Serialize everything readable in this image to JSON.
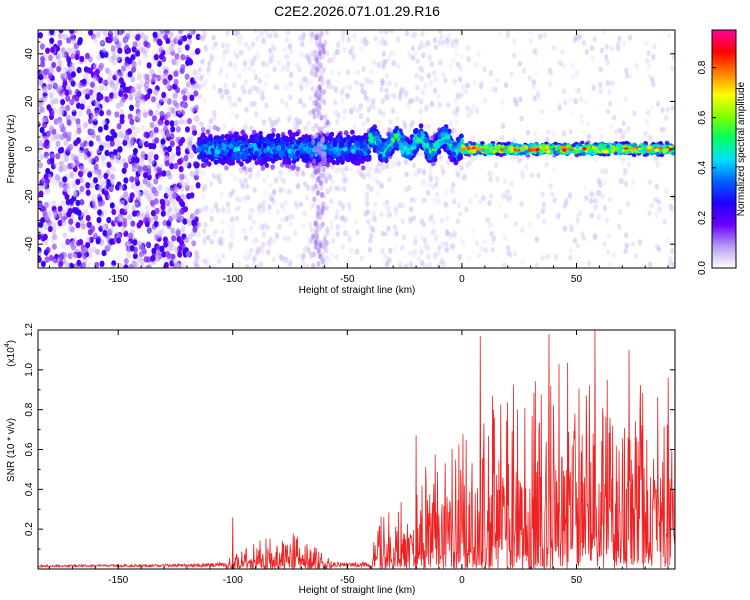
{
  "chart_data": [
    {
      "type": "heatmap",
      "title": "C2E2.2026.071.01.29.R16",
      "xlabel": "Height of straight line (km)",
      "ylabel": "Frequency (Hz)",
      "xlim": [
        -185,
        93
      ],
      "ylim": [
        -50,
        50
      ],
      "x_ticks": [
        -150,
        -100,
        -50,
        0,
        50
      ],
      "y_ticks": [
        -40,
        -20,
        0,
        20,
        40
      ],
      "colorbar": {
        "label": "Normalized spectral amplitude",
        "range": [
          0.0,
          0.95
        ],
        "ticks": [
          "0.0",
          "0.2",
          "0.4",
          "0.6",
          "0.8"
        ],
        "colormap": [
          "#ffffff",
          "#b89cf0",
          "#6a00ff",
          "#2000ff",
          "#0060ff",
          "#00e0ff",
          "#00ff60",
          "#80ff00",
          "#ffff00",
          "#ff8000",
          "#ff0000",
          "#ff00a0"
        ]
      },
      "regions": [
        {
          "x": [
            -185,
            -115
          ],
          "description": "broadband noise, amplitude 0.05-0.25, spanning full frequency range"
        },
        {
          "x": [
            -115,
            -40
          ],
          "center_hz": 0,
          "spread_hz": 9,
          "amplitude": [
            0.2,
            0.4
          ]
        },
        {
          "x": [
            -40,
            0
          ],
          "center_hz": 2,
          "spread_hz": 6,
          "amplitude": [
            0.3,
            0.55
          ]
        },
        {
          "x": [
            0,
            93
          ],
          "center_hz": 0,
          "spread_hz": 3,
          "amplitude": [
            0.4,
            0.9
          ]
        }
      ]
    },
    {
      "type": "line",
      "xlabel": "Height of straight line (km)",
      "ylabel": "SNR (10 * v/v)",
      "scale_label": "(x10",
      "scale_exp": "4",
      "scale_close": ")",
      "xlim": [
        -185,
        93
      ],
      "ylim": [
        0,
        1.2
      ],
      "x_ticks": [
        -150,
        -100,
        -50,
        0,
        50
      ],
      "y_ticks": [
        "0.2",
        "0.4",
        "0.6",
        "0.8",
        "1.0",
        "1.2"
      ],
      "line_color": "#ee2222",
      "envelope": [
        {
          "x": -185,
          "y": 0.02
        },
        {
          "x": -120,
          "y": 0.03
        },
        {
          "x": -105,
          "y": 0.05
        },
        {
          "x": -95,
          "y": 0.1
        },
        {
          "x": -85,
          "y": 0.17
        },
        {
          "x": -75,
          "y": 0.19
        },
        {
          "x": -65,
          "y": 0.12
        },
        {
          "x": -55,
          "y": 0.05
        },
        {
          "x": -40,
          "y": 0.05
        },
        {
          "x": -37,
          "y": 0.25
        },
        {
          "x": -25,
          "y": 0.35
        },
        {
          "x": -18,
          "y": 0.5
        },
        {
          "x": -10,
          "y": 0.6
        },
        {
          "x": 0,
          "y": 0.7
        },
        {
          "x": 10,
          "y": 0.9
        },
        {
          "x": 30,
          "y": 1.0
        },
        {
          "x": 50,
          "y": 1.05
        },
        {
          "x": 70,
          "y": 0.95
        },
        {
          "x": 93,
          "y": 0.9
        }
      ],
      "peaks": [
        {
          "x": -100,
          "y": 0.26
        },
        {
          "x": -20,
          "y": 0.67
        },
        {
          "x": 8,
          "y": 1.17
        },
        {
          "x": 38,
          "y": 1.18
        },
        {
          "x": 58,
          "y": 1.2
        },
        {
          "x": 73,
          "y": 1.1
        },
        {
          "x": 90,
          "y": 0.96
        }
      ]
    }
  ]
}
